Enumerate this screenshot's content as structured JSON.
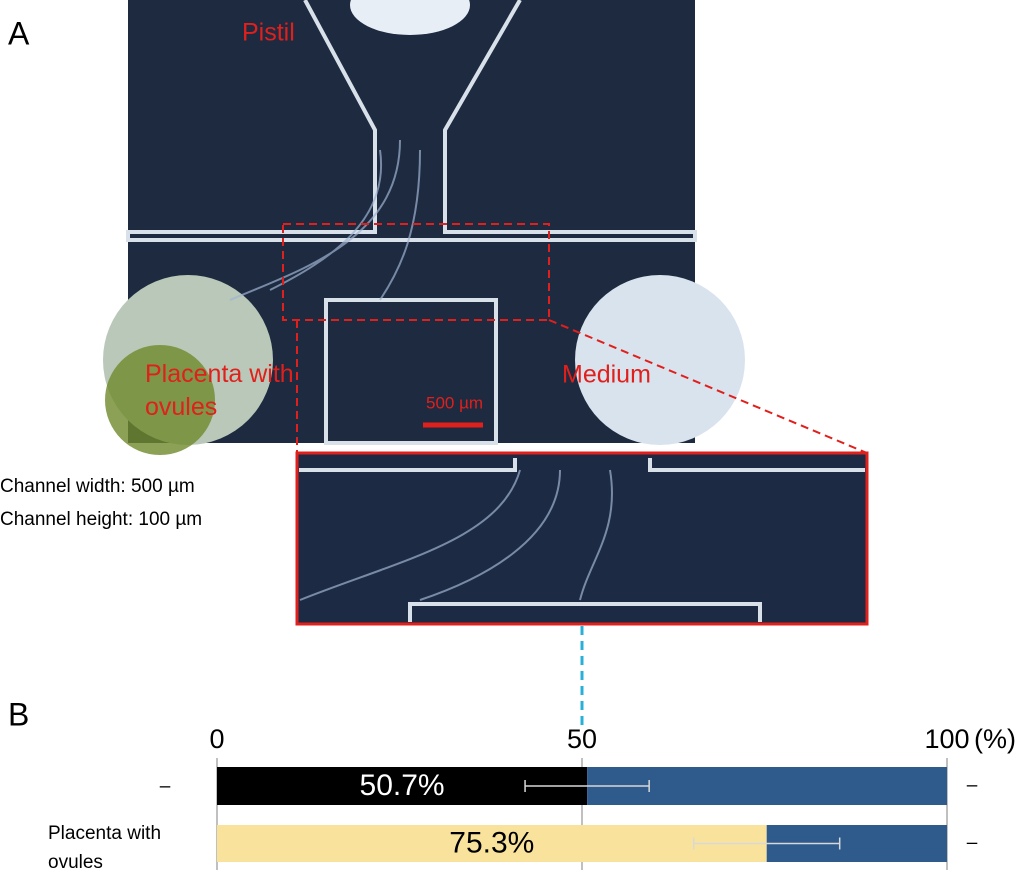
{
  "panel_a": {
    "label": "A",
    "pistil": "Pistil",
    "placenta": "Placenta with ovules",
    "medium": "Medium",
    "scale_bar": "500 µm",
    "channel_width": "Channel width: 500 µm",
    "channel_height": "Channel height: 100 µm"
  },
  "chart_data": {
    "type": "stacked-bar-horizontal",
    "panel_label": "B",
    "xlabel": "(%)",
    "categories": [
      "–",
      "Placenta with ovules"
    ],
    "right_labels": [
      "–",
      "–"
    ],
    "series": [
      {
        "colors": [
          "#000000",
          "#f9e39c"
        ],
        "values": [
          50.7,
          75.3
        ],
        "errors": [
          8.5,
          10
        ],
        "value_labels": [
          "50.7%",
          "75.3%"
        ],
        "value_label_colors": [
          "#ffffff",
          "#000000"
        ]
      },
      {
        "color": "#2e5a8c",
        "values": [
          49.3,
          24.7
        ]
      }
    ],
    "xlim": [
      0,
      100
    ],
    "xticks": [
      0,
      50,
      100
    ],
    "grid": true
  }
}
